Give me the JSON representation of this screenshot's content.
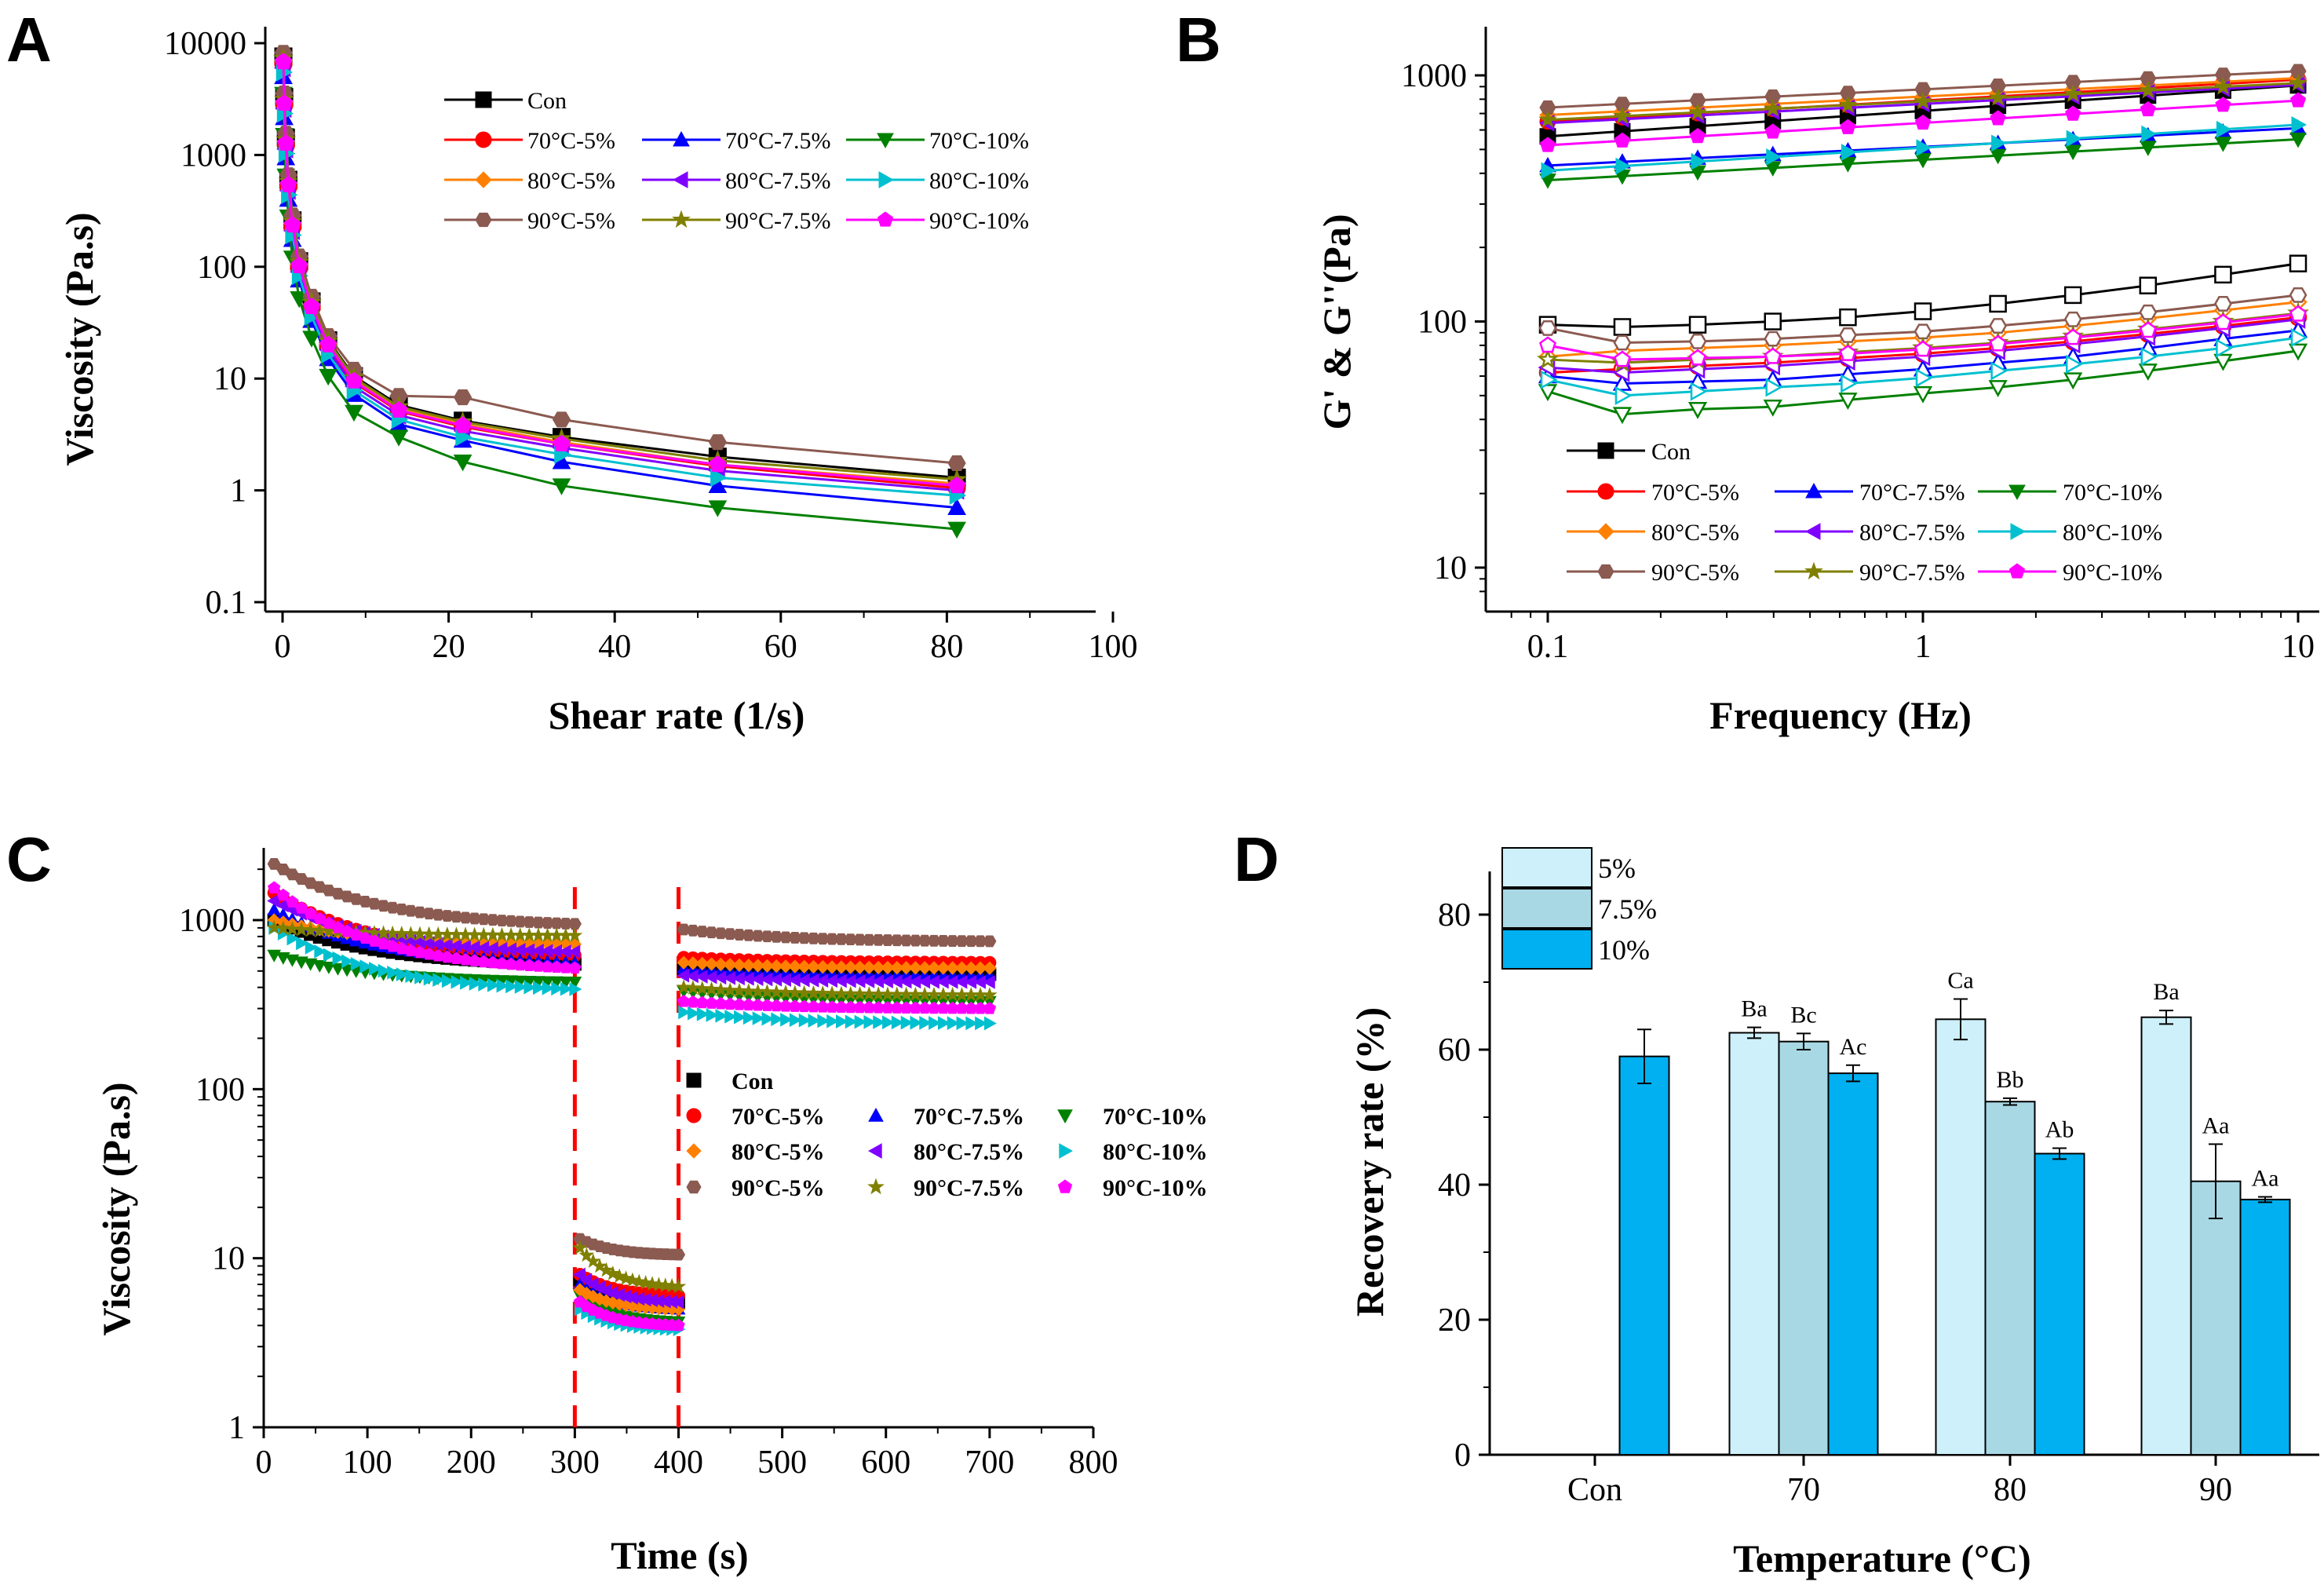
{
  "series_styles": [
    {
      "name": "Con",
      "color": "#000000",
      "marker": "square"
    },
    {
      "name": "70°C-5%",
      "color": "#ff0000",
      "marker": "circle"
    },
    {
      "name": "70°C-7.5%",
      "color": "#0000ff",
      "marker": "triangle-up"
    },
    {
      "name": "70°C-10%",
      "color": "#008000",
      "marker": "triangle-down"
    },
    {
      "name": "80°C-5%",
      "color": "#ff8000",
      "marker": "diamond"
    },
    {
      "name": "80°C-7.5%",
      "color": "#8000ff",
      "marker": "triangle-left"
    },
    {
      "name": "80°C-10%",
      "color": "#00c0d0",
      "marker": "triangle-right"
    },
    {
      "name": "90°C-5%",
      "color": "#8b5a50",
      "marker": "hexagon"
    },
    {
      "name": "90°C-7.5%",
      "color": "#808000",
      "marker": "star"
    },
    {
      "name": "90°C-10%",
      "color": "#ff00ff",
      "marker": "pentagon"
    }
  ],
  "chart_data": [
    {
      "panel": "A",
      "type": "line",
      "xlabel": "Shear rate (1/s)",
      "ylabel": "Viscosity (Pa.s)",
      "xlim": [
        0,
        100
      ],
      "ylim": [
        0.1,
        10000
      ],
      "yscale": "log",
      "xticks": [
        "0",
        "20",
        "40",
        "60",
        "80",
        "100"
      ],
      "yticks": [
        "0.1",
        "1",
        "10",
        "100",
        "1000",
        "10000"
      ],
      "x": [
        0.1,
        0.2,
        0.4,
        0.7,
        1.2,
        2.0,
        3.5,
        5.5,
        8.6,
        14,
        21.7,
        33.6,
        52.4,
        81.2
      ],
      "series": [
        {
          "name": "Con",
          "values": [
            7600,
            3300,
            1430,
            600,
            260,
            112,
            49,
            22,
            10.5,
            5.8,
            4.2,
            3.0,
            2.0,
            1.3
          ]
        },
        {
          "name": "70°C-5%",
          "values": [
            6500,
            2800,
            1220,
            520,
            228,
            98,
            43,
            19.5,
            9.2,
            5.1,
            3.7,
            2.6,
            1.65,
            1.05
          ]
        },
        {
          "name": "70°C-7.5%",
          "values": [
            5000,
            2150,
            940,
            400,
            175,
            76,
            33,
            15,
            7.2,
            3.9,
            2.8,
            1.8,
            1.1,
            0.7
          ]
        },
        {
          "name": "70°C-10%",
          "values": [
            3500,
            1500,
            650,
            280,
            120,
            52,
            23,
            10.5,
            5.0,
            3.0,
            1.8,
            1.1,
            0.7,
            0.45
          ]
        },
        {
          "name": "80°C-5%",
          "values": [
            7000,
            3000,
            1320,
            560,
            245,
            105,
            46,
            20.5,
            9.8,
            5.4,
            3.9,
            2.7,
            1.7,
            1.15
          ]
        },
        {
          "name": "80°C-7.5%",
          "values": [
            6000,
            2600,
            1130,
            480,
            210,
            90,
            40,
            18,
            8.5,
            4.7,
            3.4,
            2.4,
            1.5,
            1.0
          ]
        },
        {
          "name": "80°C-10%",
          "values": [
            5500,
            2350,
            1030,
            440,
            192,
            83,
            36,
            16.5,
            7.8,
            4.3,
            3.0,
            2.1,
            1.3,
            0.9
          ]
        },
        {
          "name": "90°C-5%",
          "values": [
            8200,
            3550,
            1550,
            660,
            288,
            124,
            54,
            24,
            12,
            7.0,
            6.8,
            4.3,
            2.7,
            1.75
          ]
        },
        {
          "name": "90°C-7.5%",
          "values": [
            7300,
            3150,
            1370,
            580,
            254,
            110,
            48,
            21.5,
            10.2,
            5.6,
            4.1,
            2.9,
            1.85,
            1.25
          ]
        },
        {
          "name": "90°C-10%",
          "values": [
            6800,
            2900,
            1270,
            540,
            236,
            102,
            44,
            20,
            9.5,
            5.2,
            3.8,
            2.6,
            1.7,
            1.1
          ]
        }
      ]
    },
    {
      "panel": "B",
      "type": "line",
      "xlabel": "Frequency (Hz)",
      "ylabel": "G' & G''(Pa)",
      "xscale": "log",
      "yscale": "log",
      "xlim": [
        0.07,
        10.5
      ],
      "ylim": [
        7,
        1400
      ],
      "xticks": [
        "0.1",
        "1",
        "10"
      ],
      "yticks": [
        "10",
        "100",
        "1000"
      ],
      "note": "filled markers = G' (upper group), hollow markers = G'' (lower group)",
      "x": [
        0.1,
        0.158,
        0.251,
        0.398,
        0.631,
        1.0,
        1.585,
        2.512,
        3.981,
        6.31,
        10.0
      ],
      "series_G_prime": [
        {
          "name": "Con",
          "start": 565,
          "end": 910
        },
        {
          "name": "70°C-5%",
          "start": 650,
          "end": 960
        },
        {
          "name": "70°C-7.5%",
          "start": 430,
          "end": 610
        },
        {
          "name": "70°C-10%",
          "start": 375,
          "end": 550
        },
        {
          "name": "80°C-5%",
          "start": 690,
          "end": 975
        },
        {
          "name": "80°C-7.5%",
          "start": 640,
          "end": 915
        },
        {
          "name": "80°C-10%",
          "start": 410,
          "end": 630
        },
        {
          "name": "90°C-5%",
          "start": 740,
          "end": 1040
        },
        {
          "name": "90°C-7.5%",
          "start": 660,
          "end": 930
        },
        {
          "name": "90°C-10%",
          "start": 520,
          "end": 790
        }
      ],
      "series_G_double_prime": [
        {
          "name": "Con",
          "values": [
            97,
            95,
            97,
            100,
            104,
            110,
            118,
            128,
            140,
            155,
            172
          ]
        },
        {
          "name": "70°C-5%",
          "values": [
            62,
            64,
            66,
            68,
            71,
            74,
            78,
            83,
            89,
            96,
            104
          ]
        },
        {
          "name": "70°C-7.5%",
          "values": [
            60,
            56,
            57,
            58,
            61,
            64,
            68,
            72,
            78,
            85,
            92
          ]
        },
        {
          "name": "70°C-10%",
          "values": [
            52,
            42,
            44,
            45,
            48,
            51,
            54,
            58,
            63,
            69,
            76
          ]
        },
        {
          "name": "80°C-5%",
          "values": [
            72,
            76,
            78,
            80,
            83,
            86,
            90,
            96,
            103,
            111,
            120
          ]
        },
        {
          "name": "80°C-7.5%",
          "values": [
            65,
            62,
            64,
            66,
            69,
            72,
            76,
            81,
            87,
            94,
            102
          ]
        },
        {
          "name": "80°C-10%",
          "values": [
            58,
            50,
            52,
            54,
            56,
            59,
            63,
            67,
            72,
            78,
            86
          ]
        },
        {
          "name": "90°C-5%",
          "values": [
            94,
            82,
            83,
            85,
            88,
            91,
            96,
            102,
            109,
            118,
            128
          ]
        },
        {
          "name": "90°C-7.5%",
          "values": [
            70,
            68,
            70,
            72,
            75,
            78,
            82,
            87,
            93,
            100,
            108
          ]
        },
        {
          "name": "90°C-10%",
          "values": [
            80,
            70,
            71,
            72,
            74,
            77,
            81,
            86,
            92,
            99,
            107
          ]
        }
      ]
    },
    {
      "panel": "C",
      "type": "scatter",
      "xlabel": "Time (s)",
      "ylabel": "Viscosity (Pa.s)",
      "xlim": [
        0,
        800
      ],
      "ylim": [
        1,
        2500
      ],
      "yscale": "log",
      "xticks": [
        "0",
        "100",
        "200",
        "300",
        "400",
        "500",
        "600",
        "700",
        "800"
      ],
      "yticks": [
        "1",
        "10",
        "100",
        "1000"
      ],
      "dashed_lines_x": [
        300,
        400
      ],
      "segments": [
        [
          10,
          300
        ],
        [
          305,
          400
        ],
        [
          405,
          700
        ]
      ],
      "series": [
        {
          "name": "Con",
          "s1": [
            1000,
            550
          ],
          "s2": [
            7.5,
            5.5
          ],
          "s3": [
            520,
            480
          ]
        },
        {
          "name": "70°C-5%",
          "s1": [
            1450,
            620
          ],
          "s2": [
            8.0,
            6.0
          ],
          "s3": [
            600,
            560
          ]
        },
        {
          "name": "70°C-7.5%",
          "s1": [
            1150,
            560
          ],
          "s2": [
            7.0,
            5.0
          ],
          "s3": [
            520,
            470
          ]
        },
        {
          "name": "70°C-10%",
          "s1": [
            620,
            430
          ],
          "s2": [
            6.0,
            4.2
          ],
          "s3": [
            380,
            330
          ]
        },
        {
          "name": "80°C-5%",
          "s1": [
            1000,
            720
          ],
          "s2": [
            6.5,
            5.0
          ],
          "s3": [
            560,
            520
          ]
        },
        {
          "name": "80°C-7.5%",
          "s1": [
            1300,
            650
          ],
          "s2": [
            8.0,
            5.5
          ],
          "s3": [
            470,
            430
          ]
        },
        {
          "name": "80°C-10%",
          "s1": [
            900,
            390
          ],
          "s2": [
            5.0,
            3.8
          ],
          "s3": [
            285,
            245
          ]
        },
        {
          "name": "90°C-5%",
          "s1": [
            2150,
            950
          ],
          "s2": [
            13,
            10.5
          ],
          "s3": [
            880,
            750
          ]
        },
        {
          "name": "90°C-7.5%",
          "s1": [
            900,
            810
          ],
          "s2": [
            11.5,
            6.8
          ],
          "s3": [
            400,
            360
          ]
        },
        {
          "name": "90°C-10%",
          "s1": [
            1550,
            520
          ],
          "s2": [
            5.5,
            4.0
          ],
          "s3": [
            330,
            300
          ]
        }
      ]
    },
    {
      "panel": "D",
      "type": "bar",
      "xlabel": "Temperature (°C)",
      "ylabel": "Recovery rate (%)",
      "ylim": [
        0,
        85
      ],
      "yticks": [
        "0",
        "20",
        "40",
        "60",
        "80"
      ],
      "categories": [
        "Con",
        "70",
        "80",
        "90"
      ],
      "series": [
        {
          "name": "5%",
          "color": "#cdf0fa",
          "values": [
            null,
            62.5,
            64.5,
            64.8
          ],
          "errors": [
            null,
            0.8,
            3.0,
            1.0
          ],
          "labels": [
            "",
            "Ba",
            "Ca",
            "Ba"
          ]
        },
        {
          "name": "7.5%",
          "color": "#a8d8e4",
          "values": [
            null,
            61.2,
            52.3,
            40.5
          ],
          "errors": [
            null,
            1.2,
            0.5,
            5.5
          ],
          "labels": [
            "",
            "Bc",
            "Bb",
            "Aa"
          ]
        },
        {
          "name": "10%",
          "color": "#00b0f0",
          "values": [
            59.0,
            56.5,
            44.6,
            37.8
          ],
          "errors": [
            4.0,
            1.2,
            0.8,
            0.4
          ],
          "labels": [
            "",
            "Ac",
            "Ab",
            "Aa"
          ]
        }
      ]
    }
  ]
}
